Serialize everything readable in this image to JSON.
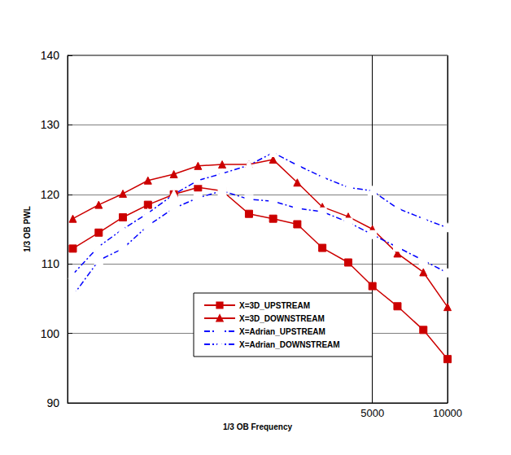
{
  "chart_data": {
    "type": "line",
    "x_label": "1/3 OB Frequency",
    "y_label": "1/3 OB PWL",
    "log": "x",
    "grid": true,
    "legend": "lower center",
    "x": [
      315,
      400,
      500,
      630,
      800,
      1000,
      1250,
      1600,
      2000,
      2500,
      3150,
      4000,
      5000,
      6300,
      8000,
      10000
    ],
    "xlim": [
      300,
      10000
    ],
    "xticks": [
      5000,
      10000
    ],
    "ylim": [
      90,
      140
    ],
    "yticks": [
      90,
      100,
      110,
      120,
      130,
      140
    ],
    "series": [
      {
        "name": "X=3D_UPSTREAM",
        "color": "#cc0000",
        "marker": "square",
        "line_style": "solid",
        "values": [
          112.2,
          114.5,
          116.7,
          118.5,
          120.0,
          121.0,
          120.5,
          117.2,
          116.5,
          115.7,
          112.3,
          110.2,
          106.8,
          103.9,
          100.5,
          96.3
        ]
      },
      {
        "name": "X=3D_DOWNSTREAM",
        "color": "#cc0000",
        "marker": "triangle",
        "line_style": "solid",
        "values": [
          116.5,
          118.5,
          120.1,
          122.0,
          122.9,
          124.1,
          124.3,
          124.3,
          125.0,
          121.7,
          118.2,
          116.8,
          115.0,
          111.5,
          108.8,
          103.8
        ]
      },
      {
        "name": "X=Adrian_UPSTREAM",
        "color": "#0000ff",
        "marker": "open_square",
        "line_style": "dashdot",
        "values": [
          105.4,
          110.5,
          112.2,
          115.5,
          118.0,
          119.5,
          120.5,
          119.3,
          119.0,
          118.0,
          117.5,
          116.0,
          114.2,
          112.4,
          110.5,
          108.7
        ]
      },
      {
        "name": "X=Adrian_DOWNSTREAM",
        "color": "#0000ff",
        "marker": "open_triangle",
        "line_style": "dashdot",
        "values": [
          108.5,
          112.5,
          115.0,
          117.3,
          120.0,
          122.0,
          123.0,
          124.2,
          126.0,
          124.2,
          122.5,
          121.0,
          120.5,
          118.0,
          116.5,
          115.2
        ]
      }
    ]
  }
}
